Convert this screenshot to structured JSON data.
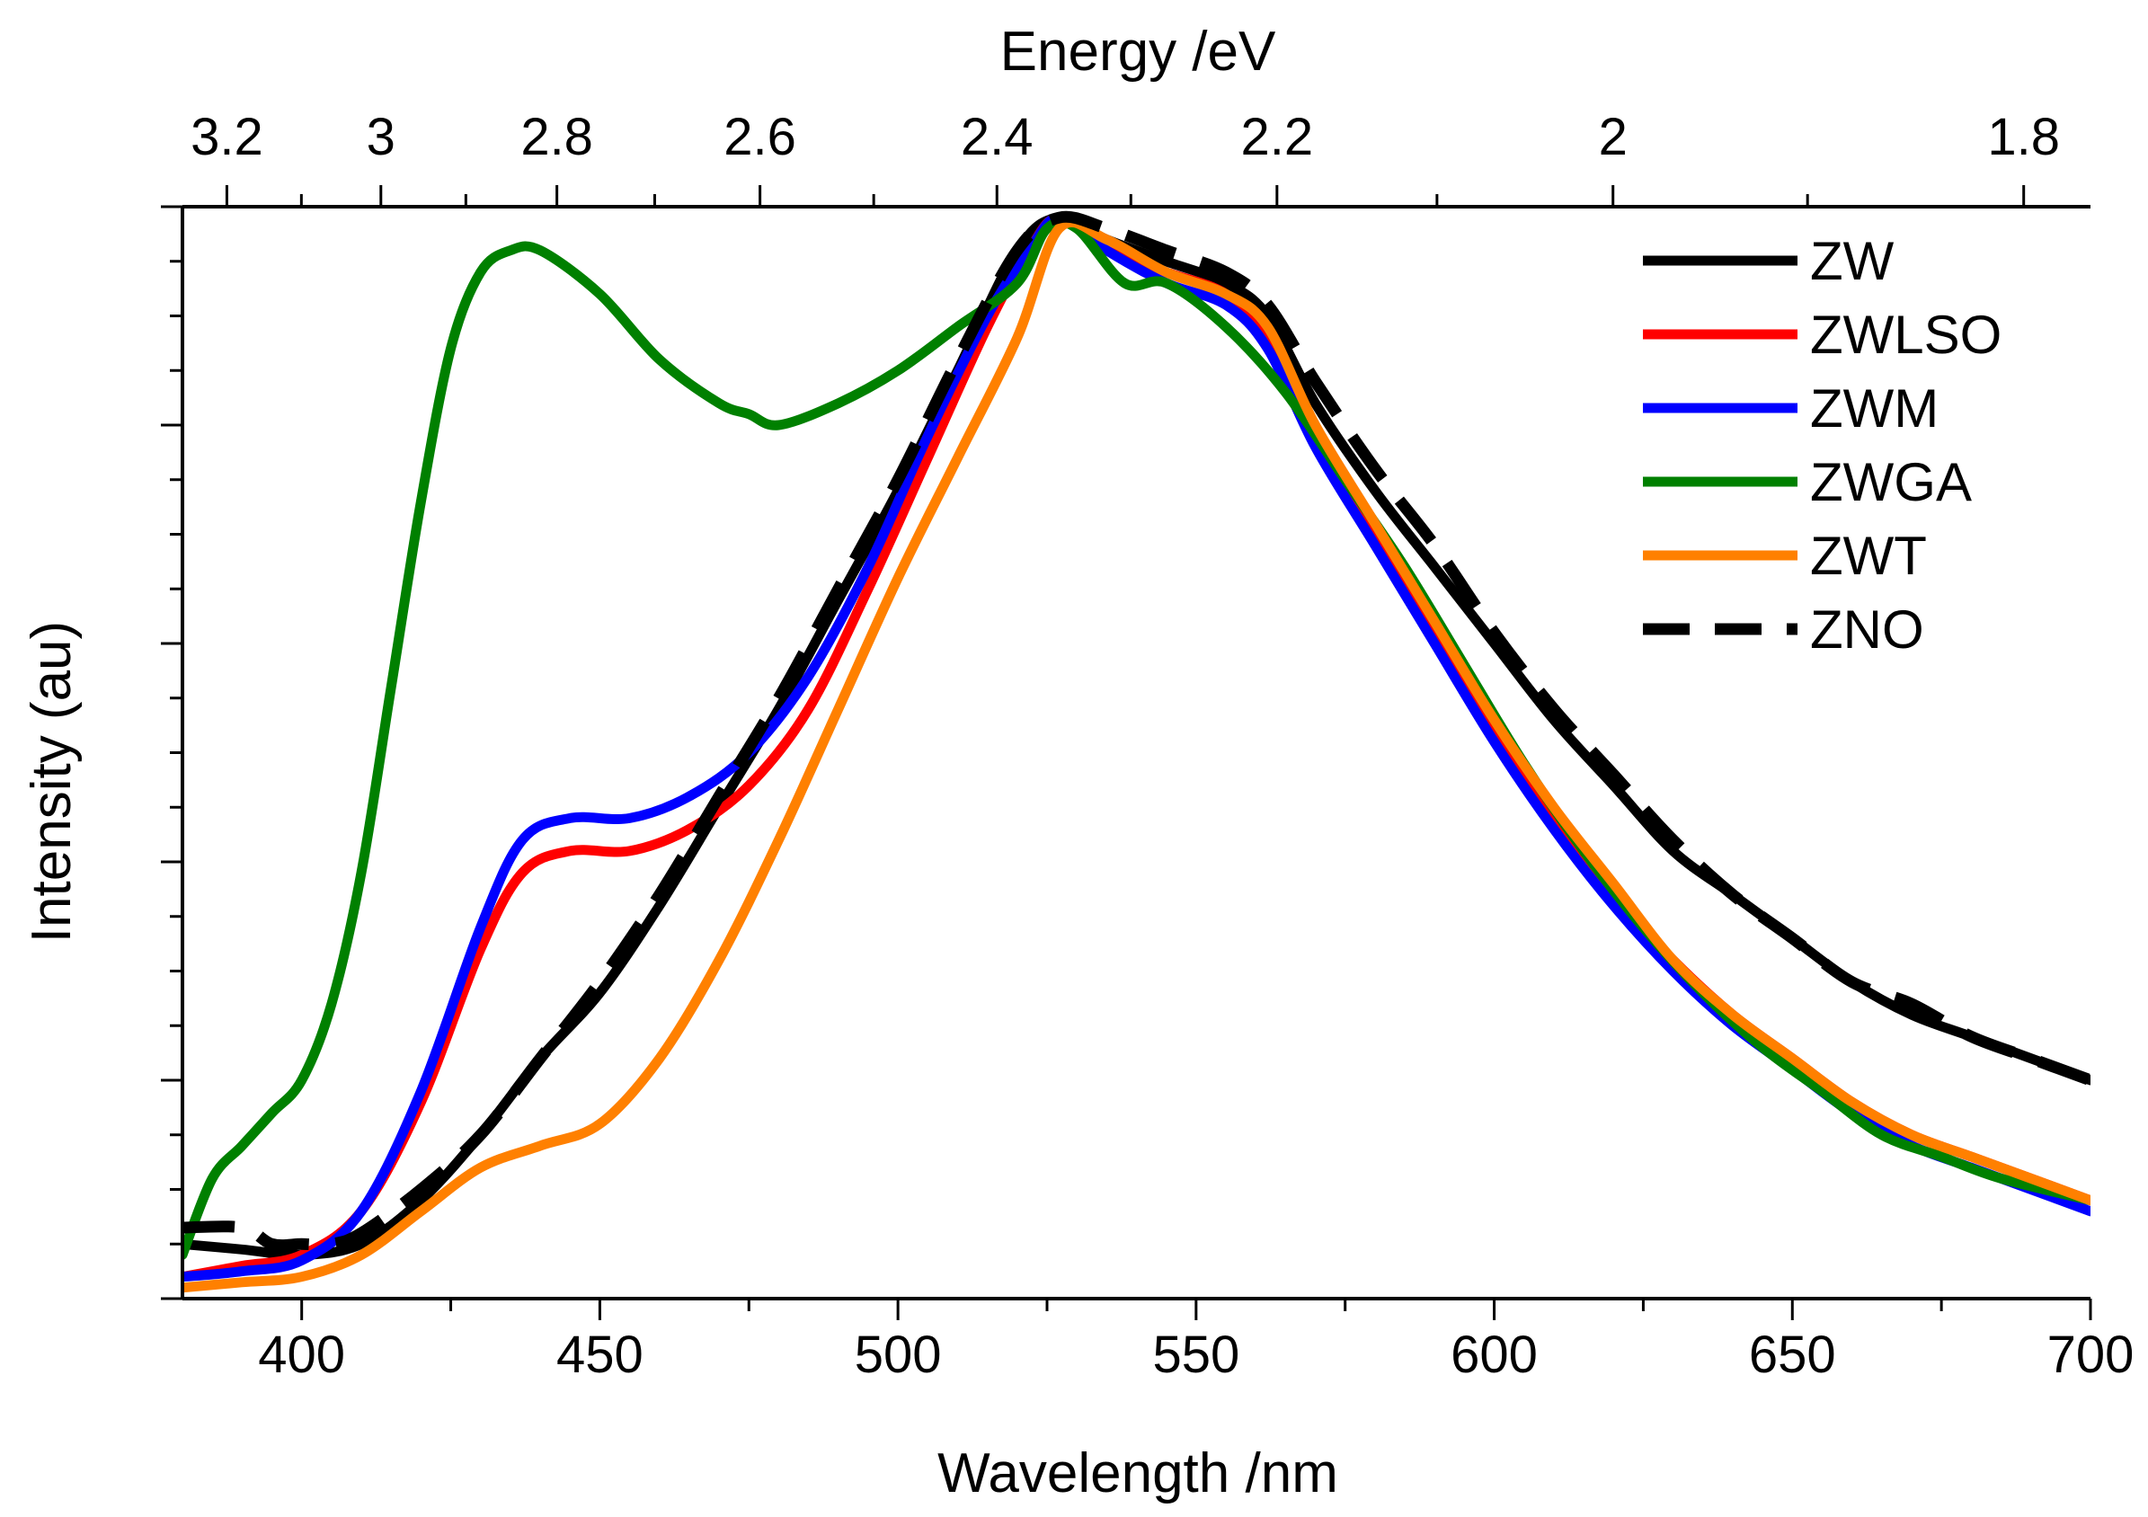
{
  "chart_data": {
    "type": "line",
    "title": "",
    "xlabel": "Wavelength /nm",
    "ylabel": "Intensity (au)",
    "top_axis_label": "Energy /eV",
    "xlim": [
      380,
      700
    ],
    "ylim": [
      0,
      1
    ],
    "x_ticks": [
      400,
      450,
      500,
      550,
      600,
      650,
      700
    ],
    "x_tick_labels": [
      "400",
      "450",
      "500",
      "550",
      "600",
      "650",
      "700"
    ],
    "top_ticks": [
      3.2,
      3.0,
      2.8,
      2.6,
      2.4,
      2.2,
      2.0,
      1.8
    ],
    "top_tick_labels": [
      "3.2",
      "3",
      "2.8",
      "2.6",
      "2.4",
      "2.2",
      "2",
      "1.8"
    ],
    "y_tick_labels_visible": false,
    "grid": false,
    "legend_position": "top-right",
    "series": [
      {
        "name": "ZW",
        "color": "#000000",
        "dash": "solid",
        "points": [
          [
            380,
            0.05
          ],
          [
            390,
            0.045
          ],
          [
            400,
            0.04
          ],
          [
            410,
            0.05
          ],
          [
            420,
            0.09
          ],
          [
            430,
            0.15
          ],
          [
            440,
            0.22
          ],
          [
            450,
            0.28
          ],
          [
            460,
            0.36
          ],
          [
            470,
            0.45
          ],
          [
            480,
            0.54
          ],
          [
            490,
            0.64
          ],
          [
            500,
            0.74
          ],
          [
            510,
            0.85
          ],
          [
            520,
            0.96
          ],
          [
            527,
            0.99
          ],
          [
            535,
            0.97
          ],
          [
            545,
            0.95
          ],
          [
            555,
            0.93
          ],
          [
            562,
            0.9
          ],
          [
            570,
            0.82
          ],
          [
            580,
            0.74
          ],
          [
            590,
            0.67
          ],
          [
            600,
            0.6
          ],
          [
            610,
            0.53
          ],
          [
            620,
            0.47
          ],
          [
            630,
            0.41
          ],
          [
            640,
            0.37
          ],
          [
            650,
            0.33
          ],
          [
            660,
            0.29
          ],
          [
            670,
            0.26
          ],
          [
            680,
            0.24
          ],
          [
            690,
            0.22
          ],
          [
            700,
            0.2
          ]
        ]
      },
      {
        "name": "ZWLSO",
        "color": "#ff0000",
        "dash": "solid",
        "points": [
          [
            380,
            0.02
          ],
          [
            390,
            0.03
          ],
          [
            400,
            0.04
          ],
          [
            410,
            0.08
          ],
          [
            420,
            0.18
          ],
          [
            430,
            0.32
          ],
          [
            437,
            0.39
          ],
          [
            445,
            0.41
          ],
          [
            455,
            0.41
          ],
          [
            465,
            0.43
          ],
          [
            475,
            0.47
          ],
          [
            485,
            0.54
          ],
          [
            495,
            0.65
          ],
          [
            505,
            0.77
          ],
          [
            515,
            0.89
          ],
          [
            522,
            0.96
          ],
          [
            527,
            0.99
          ],
          [
            535,
            0.96
          ],
          [
            545,
            0.94
          ],
          [
            555,
            0.92
          ],
          [
            562,
            0.88
          ],
          [
            570,
            0.79
          ],
          [
            580,
            0.7
          ],
          [
            590,
            0.61
          ],
          [
            600,
            0.52
          ],
          [
            610,
            0.44
          ],
          [
            620,
            0.37
          ],
          [
            630,
            0.31
          ],
          [
            640,
            0.26
          ],
          [
            650,
            0.22
          ],
          [
            660,
            0.18
          ],
          [
            670,
            0.15
          ],
          [
            680,
            0.13
          ],
          [
            690,
            0.11
          ],
          [
            700,
            0.09
          ]
        ]
      },
      {
        "name": "ZWM",
        "color": "#0000ff",
        "dash": "solid",
        "points": [
          [
            380,
            0.02
          ],
          [
            390,
            0.025
          ],
          [
            400,
            0.035
          ],
          [
            410,
            0.08
          ],
          [
            420,
            0.19
          ],
          [
            430,
            0.34
          ],
          [
            437,
            0.42
          ],
          [
            445,
            0.44
          ],
          [
            455,
            0.44
          ],
          [
            465,
            0.46
          ],
          [
            475,
            0.5
          ],
          [
            485,
            0.57
          ],
          [
            495,
            0.67
          ],
          [
            505,
            0.79
          ],
          [
            515,
            0.9
          ],
          [
            522,
            0.96
          ],
          [
            527,
            0.99
          ],
          [
            535,
            0.96
          ],
          [
            545,
            0.93
          ],
          [
            555,
            0.91
          ],
          [
            562,
            0.87
          ],
          [
            570,
            0.78
          ],
          [
            580,
            0.69
          ],
          [
            590,
            0.6
          ],
          [
            600,
            0.51
          ],
          [
            610,
            0.43
          ],
          [
            620,
            0.36
          ],
          [
            630,
            0.3
          ],
          [
            640,
            0.25
          ],
          [
            650,
            0.21
          ],
          [
            660,
            0.17
          ],
          [
            670,
            0.14
          ],
          [
            680,
            0.12
          ],
          [
            690,
            0.1
          ],
          [
            700,
            0.08
          ]
        ]
      },
      {
        "name": "ZWGA",
        "color": "#008000",
        "dash": "solid",
        "points": [
          [
            380,
            0.04
          ],
          [
            385,
            0.11
          ],
          [
            390,
            0.14
          ],
          [
            395,
            0.17
          ],
          [
            400,
            0.2
          ],
          [
            405,
            0.27
          ],
          [
            410,
            0.39
          ],
          [
            415,
            0.56
          ],
          [
            420,
            0.73
          ],
          [
            425,
            0.87
          ],
          [
            430,
            0.94
          ],
          [
            435,
            0.96
          ],
          [
            440,
            0.96
          ],
          [
            450,
            0.92
          ],
          [
            460,
            0.86
          ],
          [
            470,
            0.82
          ],
          [
            475,
            0.81
          ],
          [
            480,
            0.8
          ],
          [
            490,
            0.82
          ],
          [
            500,
            0.85
          ],
          [
            510,
            0.89
          ],
          [
            520,
            0.93
          ],
          [
            525,
            0.98
          ],
          [
            530,
            0.98
          ],
          [
            538,
            0.93
          ],
          [
            545,
            0.93
          ],
          [
            555,
            0.89
          ],
          [
            565,
            0.83
          ],
          [
            575,
            0.75
          ],
          [
            585,
            0.67
          ],
          [
            595,
            0.58
          ],
          [
            605,
            0.49
          ],
          [
            615,
            0.41
          ],
          [
            625,
            0.34
          ],
          [
            635,
            0.28
          ],
          [
            645,
            0.23
          ],
          [
            655,
            0.19
          ],
          [
            665,
            0.15
          ],
          [
            675,
            0.13
          ],
          [
            685,
            0.11
          ],
          [
            700,
            0.09
          ]
        ]
      },
      {
        "name": "ZWT",
        "color": "#ff8000",
        "dash": "solid",
        "points": [
          [
            380,
            0.01
          ],
          [
            390,
            0.015
          ],
          [
            400,
            0.02
          ],
          [
            410,
            0.04
          ],
          [
            420,
            0.08
          ],
          [
            430,
            0.12
          ],
          [
            440,
            0.14
          ],
          [
            450,
            0.16
          ],
          [
            460,
            0.22
          ],
          [
            470,
            0.31
          ],
          [
            480,
            0.42
          ],
          [
            490,
            0.54
          ],
          [
            500,
            0.66
          ],
          [
            510,
            0.77
          ],
          [
            520,
            0.88
          ],
          [
            527,
            0.98
          ],
          [
            535,
            0.97
          ],
          [
            545,
            0.94
          ],
          [
            555,
            0.92
          ],
          [
            562,
            0.89
          ],
          [
            570,
            0.8
          ],
          [
            580,
            0.71
          ],
          [
            590,
            0.62
          ],
          [
            600,
            0.53
          ],
          [
            610,
            0.45
          ],
          [
            620,
            0.38
          ],
          [
            630,
            0.31
          ],
          [
            640,
            0.26
          ],
          [
            650,
            0.22
          ],
          [
            660,
            0.18
          ],
          [
            670,
            0.15
          ],
          [
            680,
            0.13
          ],
          [
            690,
            0.11
          ],
          [
            700,
            0.09
          ]
        ]
      },
      {
        "name": "ZNO",
        "color": "#000000",
        "dash": "dashed",
        "points": [
          [
            380,
            0.065
          ],
          [
            390,
            0.065
          ],
          [
            395,
            0.05
          ],
          [
            400,
            0.05
          ],
          [
            405,
            0.05
          ],
          [
            410,
            0.06
          ],
          [
            420,
            0.1
          ],
          [
            430,
            0.15
          ],
          [
            440,
            0.22
          ],
          [
            450,
            0.29
          ],
          [
            460,
            0.37
          ],
          [
            470,
            0.46
          ],
          [
            480,
            0.55
          ],
          [
            490,
            0.65
          ],
          [
            500,
            0.75
          ],
          [
            510,
            0.86
          ],
          [
            520,
            0.96
          ],
          [
            527,
            0.99
          ],
          [
            535,
            0.98
          ],
          [
            545,
            0.96
          ],
          [
            555,
            0.94
          ],
          [
            562,
            0.91
          ],
          [
            570,
            0.84
          ],
          [
            580,
            0.76
          ],
          [
            590,
            0.69
          ],
          [
            600,
            0.61
          ],
          [
            610,
            0.54
          ],
          [
            620,
            0.48
          ],
          [
            630,
            0.42
          ],
          [
            640,
            0.37
          ],
          [
            650,
            0.33
          ],
          [
            660,
            0.29
          ],
          [
            670,
            0.27
          ],
          [
            680,
            0.24
          ],
          [
            690,
            0.22
          ],
          [
            700,
            0.2
          ]
        ]
      }
    ]
  }
}
